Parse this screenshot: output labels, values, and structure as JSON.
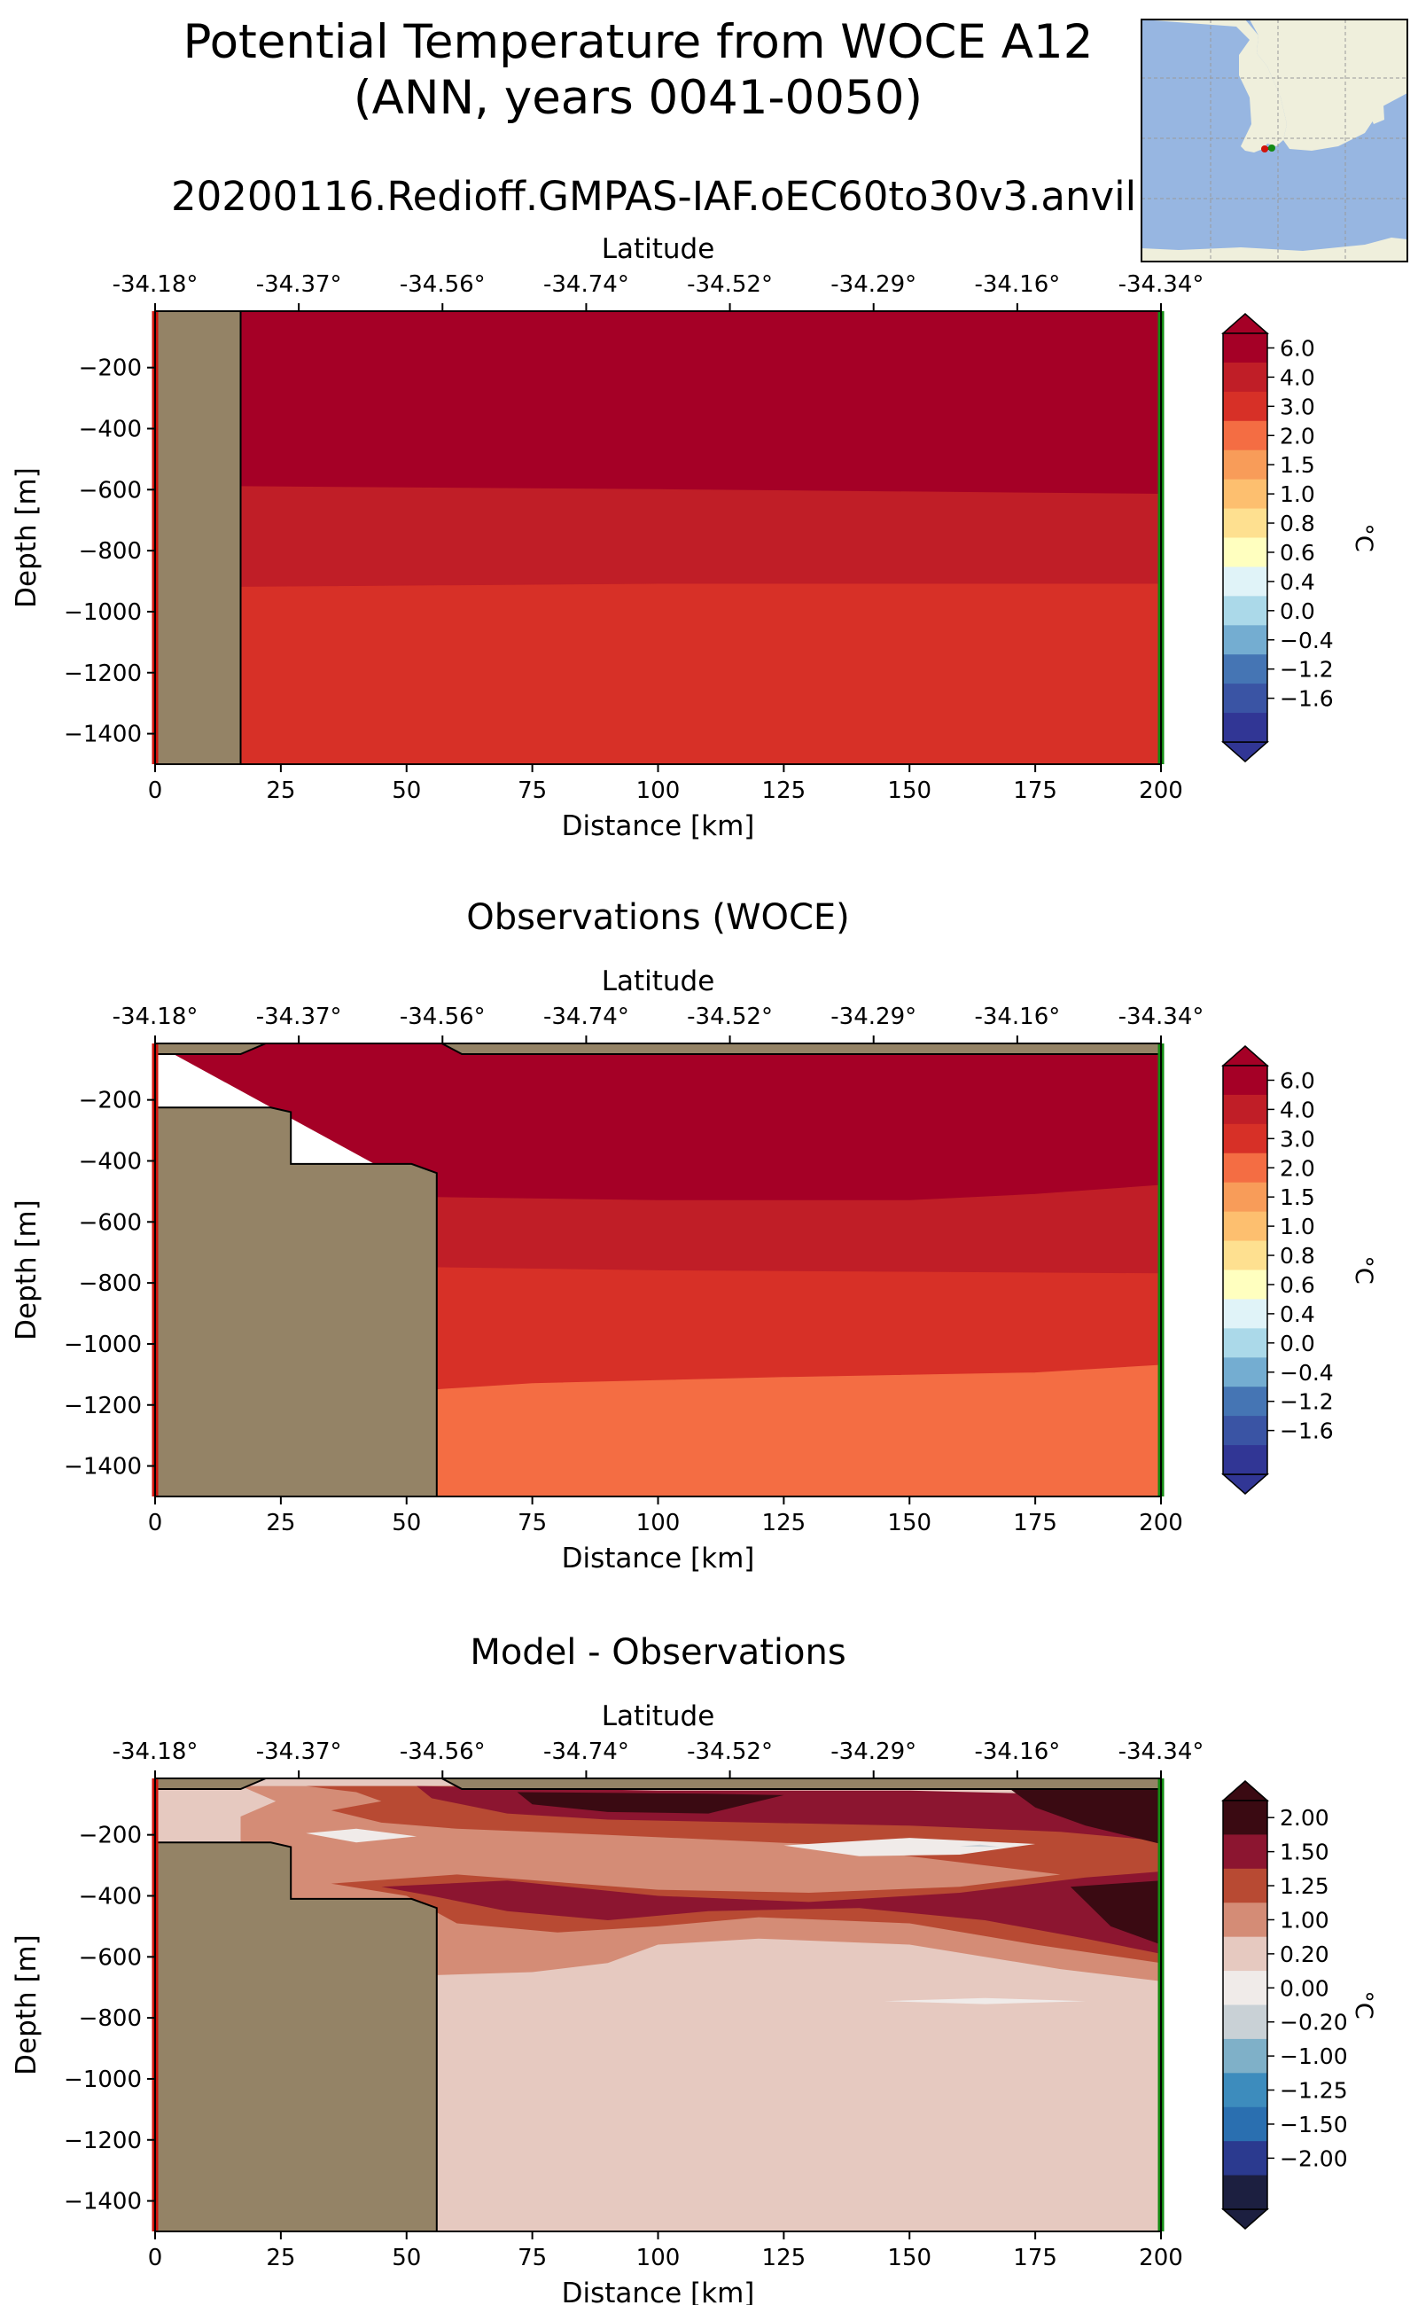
{
  "figure": {
    "title_line1": "Potential Temperature from WOCE A12",
    "title_line2": "(ANN, years 0041-0050)",
    "run_name": "20200116.Redioff.GMPAS-IAF.oEC60to30v3.anvil"
  },
  "colors": {
    "land": "#948366",
    "ocean_map": "#97b6e1",
    "land_map": "#efefdc",
    "start_marker": "#d0140c",
    "end_marker": "#138a12"
  },
  "chart_data": [
    {
      "type": "heatmap",
      "title": "",
      "xlabel": "Distance [km]",
      "ylabel": "Depth [m]",
      "top_axis_label": "Latitude",
      "xlim": [
        0,
        200
      ],
      "ylim": [
        -1500,
        -15
      ],
      "x_ticks": [
        0,
        25,
        50,
        75,
        100,
        125,
        150,
        175,
        200
      ],
      "y_ticks": [
        -200,
        -400,
        -600,
        -800,
        -1000,
        -1200,
        -1400
      ],
      "lat_ticks": [
        "-34.18°",
        "-34.37°",
        "-34.56°",
        "-34.74°",
        "-34.52°",
        "-34.29°",
        "-34.16°",
        "-34.34°"
      ],
      "colorbar": {
        "label": "°C",
        "levels": [
          "6.0",
          "4.0",
          "3.0",
          "2.0",
          "1.5",
          "1.0",
          "0.8",
          "0.6",
          "0.4",
          "0.0",
          "−0.4",
          "−1.2",
          "−1.6"
        ],
        "colors": [
          "#a50026",
          "#c01e27",
          "#d73027",
          "#f46d43",
          "#f89c59",
          "#fdbf6f",
          "#fee090",
          "#ffffbf",
          "#e0f3f8",
          "#abd9e9",
          "#74add1",
          "#4575b4",
          "#3a54a4",
          "#313695"
        ]
      },
      "land_polygon_km_m": [
        [
          0,
          -15
        ],
        [
          17,
          -15
        ],
        [
          17,
          -1500
        ],
        [
          0,
          -1500
        ]
      ],
      "bands": [
        {
          "color": "#a50026",
          "bottom_m": [
            [
              17,
              -590
            ],
            [
              100,
              -600
            ],
            [
              200,
              -615
            ]
          ]
        },
        {
          "color": "#c01e27",
          "bottom_m": [
            [
              17,
              -920
            ],
            [
              100,
              -910
            ],
            [
              200,
              -910
            ]
          ]
        },
        {
          "color": "#d73027",
          "bottom_m": [
            [
              17,
              -1500
            ],
            [
              200,
              -1500
            ]
          ]
        }
      ]
    },
    {
      "type": "heatmap",
      "title": "Observations (WOCE)",
      "xlabel": "Distance [km]",
      "ylabel": "Depth [m]",
      "top_axis_label": "Latitude",
      "xlim": [
        0,
        200
      ],
      "ylim": [
        -1500,
        -15
      ],
      "x_ticks": [
        0,
        25,
        50,
        75,
        100,
        125,
        150,
        175,
        200
      ],
      "y_ticks": [
        -200,
        -400,
        -600,
        -800,
        -1000,
        -1200,
        -1400
      ],
      "lat_ticks": [
        "-34.18°",
        "-34.37°",
        "-34.56°",
        "-34.74°",
        "-34.52°",
        "-34.29°",
        "-34.16°",
        "-34.34°"
      ],
      "colorbar": {
        "label": "°C",
        "levels": [
          "6.0",
          "4.0",
          "3.0",
          "2.0",
          "1.5",
          "1.0",
          "0.8",
          "0.6",
          "0.4",
          "0.0",
          "−0.4",
          "−1.2",
          "−1.6"
        ],
        "colors": [
          "#a50026",
          "#c01e27",
          "#d73027",
          "#f46d43",
          "#f89c59",
          "#fdbf6f",
          "#fee090",
          "#ffffbf",
          "#e0f3f8",
          "#abd9e9",
          "#74add1",
          "#4575b4",
          "#3a54a4",
          "#313695"
        ]
      },
      "land_polygon_km_m": [
        [
          0,
          -15
        ],
        [
          200,
          -15
        ],
        [
          200,
          -50
        ],
        [
          61,
          -50
        ],
        [
          57,
          -15
        ],
        [
          22,
          -15
        ],
        [
          17,
          -50
        ],
        [
          0,
          -50
        ],
        [
          0,
          -225
        ],
        [
          23,
          -225
        ],
        [
          27,
          -240
        ],
        [
          27,
          -410
        ],
        [
          51,
          -410
        ],
        [
          56,
          -440
        ],
        [
          56,
          -1500
        ],
        [
          0,
          -1500
        ]
      ],
      "bands": [
        {
          "color": "#a50026",
          "bottom_m": [
            [
              56,
              -520
            ],
            [
              100,
              -530
            ],
            [
              150,
              -530
            ],
            [
              175,
              -510
            ],
            [
              200,
              -480
            ]
          ]
        },
        {
          "color": "#c01e27",
          "bottom_m": [
            [
              56,
              -750
            ],
            [
              100,
              -760
            ],
            [
              200,
              -770
            ]
          ]
        },
        {
          "color": "#d73027",
          "bottom_m": [
            [
              56,
              -1150
            ],
            [
              75,
              -1130
            ],
            [
              125,
              -1110
            ],
            [
              175,
              -1095
            ],
            [
              200,
              -1070
            ]
          ]
        },
        {
          "color": "#f46d43",
          "bottom_m": [
            [
              56,
              -1500
            ],
            [
              200,
              -1500
            ]
          ]
        }
      ]
    },
    {
      "type": "heatmap",
      "title": "Model - Observations",
      "xlabel": "Distance [km]",
      "ylabel": "Depth [m]",
      "top_axis_label": "Latitude",
      "xlim": [
        0,
        200
      ],
      "ylim": [
        -1500,
        -15
      ],
      "x_ticks": [
        0,
        25,
        50,
        75,
        100,
        125,
        150,
        175,
        200
      ],
      "y_ticks": [
        -200,
        -400,
        -600,
        -800,
        -1000,
        -1200,
        -1400
      ],
      "lat_ticks": [
        "-34.18°",
        "-34.37°",
        "-34.56°",
        "-34.74°",
        "-34.52°",
        "-34.29°",
        "-34.16°",
        "-34.34°"
      ],
      "colorbar": {
        "label": "°C",
        "levels": [
          "2.00",
          "1.50",
          "1.25",
          "1.00",
          "0.20",
          "0.00",
          "−0.20",
          "−1.00",
          "−1.25",
          "−1.50",
          "−2.00"
        ],
        "colors": [
          "#3a0a12",
          "#8c1530",
          "#b84a33",
          "#d48c76",
          "#e6c9c0",
          "#f0ebe9",
          "#c9d1d6",
          "#7fb0c8",
          "#3d8cbd",
          "#2a6fb0",
          "#2b3a8f",
          "#1c1f40"
        ]
      },
      "land_polygon_km_m": [
        [
          0,
          -15
        ],
        [
          200,
          -15
        ],
        [
          200,
          -50
        ],
        [
          61,
          -50
        ],
        [
          57,
          -15
        ],
        [
          22,
          -15
        ],
        [
          17,
          -50
        ],
        [
          0,
          -50
        ],
        [
          0,
          -225
        ],
        [
          23,
          -225
        ],
        [
          27,
          -240
        ],
        [
          27,
          -410
        ],
        [
          51,
          -410
        ],
        [
          56,
          -440
        ],
        [
          56,
          -1500
        ],
        [
          0,
          -1500
        ]
      ],
      "diff_background": "#e6c9c0",
      "diff_patches": [
        {
          "color": "#d48c76",
          "points": [
            [
              17,
              -40
            ],
            [
              60,
              -40
            ],
            [
              100,
              -60
            ],
            [
              150,
              -60
            ],
            [
              200,
              -80
            ],
            [
              200,
              -680
            ],
            [
              180,
              -640
            ],
            [
              150,
              -560
            ],
            [
              120,
              -540
            ],
            [
              100,
              -560
            ],
            [
              90,
              -620
            ],
            [
              75,
              -650
            ],
            [
              56,
              -660
            ],
            [
              56,
              -440
            ],
            [
              51,
              -410
            ],
            [
              27,
              -410
            ],
            [
              27,
              -240
            ],
            [
              23,
              -225
            ],
            [
              17,
              -225
            ],
            [
              17,
              -140
            ],
            [
              24,
              -90
            ]
          ]
        },
        {
          "color": "#b84a33",
          "points": [
            [
              30,
              -40
            ],
            [
              60,
              -40
            ],
            [
              100,
              -60
            ],
            [
              150,
              -60
            ],
            [
              200,
              -80
            ],
            [
              200,
              -620
            ],
            [
              175,
              -560
            ],
            [
              150,
              -490
            ],
            [
              120,
              -470
            ],
            [
              100,
              -500
            ],
            [
              80,
              -520
            ],
            [
              60,
              -490
            ],
            [
              50,
              -400
            ],
            [
              35,
              -360
            ],
            [
              60,
              -330
            ],
            [
              100,
              -380
            ],
            [
              130,
              -390
            ],
            [
              160,
              -370
            ],
            [
              180,
              -330
            ],
            [
              165,
              -300
            ],
            [
              130,
              -230
            ],
            [
              90,
              -200
            ],
            [
              60,
              -180
            ],
            [
              45,
              -160
            ],
            [
              35,
              -120
            ],
            [
              45,
              -90
            ],
            [
              40,
              -60
            ]
          ]
        },
        {
          "color": "#8c1530",
          "points": [
            [
              52,
              -40
            ],
            [
              100,
              -55
            ],
            [
              150,
              -55
            ],
            [
              200,
              -75
            ],
            [
              200,
              -220
            ],
            [
              180,
              -190
            ],
            [
              150,
              -170
            ],
            [
              120,
              -160
            ],
            [
              90,
              -150
            ],
            [
              70,
              -130
            ],
            [
              55,
              -80
            ]
          ]
        },
        {
          "color": "#8c1530",
          "points": [
            [
              45,
              -370
            ],
            [
              70,
              -350
            ],
            [
              100,
              -400
            ],
            [
              130,
              -420
            ],
            [
              160,
              -390
            ],
            [
              185,
              -340
            ],
            [
              200,
              -320
            ],
            [
              200,
              -590
            ],
            [
              185,
              -540
            ],
            [
              165,
              -480
            ],
            [
              140,
              -440
            ],
            [
              110,
              -450
            ],
            [
              90,
              -480
            ],
            [
              70,
              -450
            ],
            [
              55,
              -400
            ]
          ]
        },
        {
          "color": "#3a0a12",
          "points": [
            [
              72,
              -60
            ],
            [
              110,
              -65
            ],
            [
              125,
              -70
            ],
            [
              110,
              -130
            ],
            [
              90,
              -125
            ],
            [
              75,
              -100
            ]
          ]
        },
        {
          "color": "#3a0a12",
          "points": [
            [
              170,
              -50
            ],
            [
              200,
              -50
            ],
            [
              200,
              -230
            ],
            [
              185,
              -170
            ],
            [
              175,
              -110
            ]
          ]
        },
        {
          "color": "#3a0a12",
          "points": [
            [
              182,
              -370
            ],
            [
              200,
              -350
            ],
            [
              200,
              -560
            ],
            [
              190,
              -500
            ]
          ]
        },
        {
          "color": "#f0ebe9",
          "points": [
            [
              30,
              -195
            ],
            [
              40,
              -180
            ],
            [
              52,
              -205
            ],
            [
              40,
              -225
            ]
          ]
        },
        {
          "color": "#f0ebe9",
          "points": [
            [
              125,
              -235
            ],
            [
              150,
              -210
            ],
            [
              175,
              -230
            ],
            [
              160,
              -265
            ],
            [
              140,
              -270
            ]
          ]
        },
        {
          "color": "#f0ebe9",
          "points": [
            [
              145,
              -745
            ],
            [
              165,
              -735
            ],
            [
              185,
              -745
            ],
            [
              165,
              -755
            ]
          ]
        },
        {
          "color": "#c9d1d6",
          "points": [
            [
              160,
              -238
            ],
            [
              164,
              -232
            ],
            [
              168,
              -240
            ]
          ]
        }
      ]
    }
  ],
  "inset_map": {
    "land_polygons": []
  }
}
